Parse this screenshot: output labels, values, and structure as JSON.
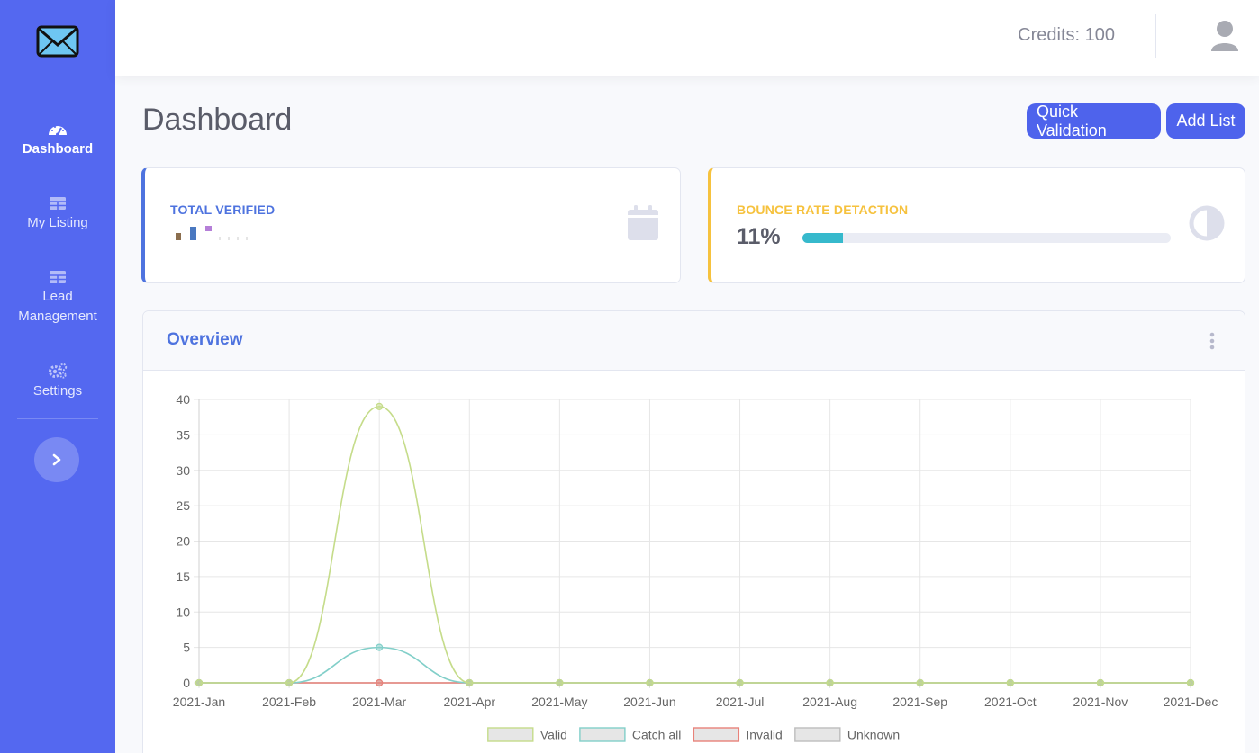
{
  "sidebar": {
    "brand_icon": "envelope-icon",
    "items": [
      {
        "label": "Dashboard",
        "icon": "tachometer-icon",
        "active": true
      },
      {
        "label": "My Listing",
        "icon": "table-icon"
      },
      {
        "label": "Lead Management",
        "icon": "table-icon"
      },
      {
        "label": "Settings",
        "icon": "cogs-icon"
      }
    ],
    "toggle_icon": "chevron-right-icon"
  },
  "topbar": {
    "credits": "Credits: 100",
    "avatar_icon": "user-icon"
  },
  "page": {
    "title": "Dashboard",
    "buttons": {
      "quick_validation": "Quick Validation",
      "add_list": "Add List"
    }
  },
  "stats": {
    "total_verified": {
      "label": "TOTAL VERIFIED",
      "icon": "calendar-icon"
    },
    "bounce_rate": {
      "label": "BOUNCE RATE DETACTION",
      "value": "11%",
      "progress_percent": 11,
      "icon": "half-circle-icon"
    }
  },
  "colors": {
    "primary": "#4e73df",
    "warning": "#f6c23e",
    "info": "#36b9cc",
    "sidebar": "#5468f0"
  },
  "overview": {
    "title": "Overview"
  },
  "chart_data": {
    "type": "line",
    "categories": [
      "2021-Jan",
      "2021-Feb",
      "2021-Mar",
      "2021-Apr",
      "2021-May",
      "2021-Jun",
      "2021-Jul",
      "2021-Aug",
      "2021-Sep",
      "2021-Oct",
      "2021-Nov",
      "2021-Dec"
    ],
    "ylim": [
      0,
      40
    ],
    "yticks": [
      0,
      5,
      10,
      15,
      20,
      25,
      30,
      35,
      40
    ],
    "grid": true,
    "legend": "bottom",
    "series": [
      {
        "name": "Valid",
        "color": "#c5dc8a",
        "values": [
          0,
          0,
          39,
          0,
          0,
          0,
          0,
          0,
          0,
          0,
          0,
          0
        ]
      },
      {
        "name": "Catch all",
        "color": "#82cfc9",
        "values": [
          0,
          0,
          5,
          0,
          0,
          0,
          0,
          0,
          0,
          0,
          0,
          0
        ]
      },
      {
        "name": "Invalid",
        "color": "#e8827a",
        "values": [
          0,
          0,
          0,
          0,
          0,
          0,
          0,
          0,
          0,
          0,
          0,
          0
        ]
      },
      {
        "name": "Unknown",
        "color": "#bdbdbd",
        "values": [
          0,
          0,
          0,
          0,
          0,
          0,
          0,
          0,
          0,
          0,
          0,
          0
        ]
      }
    ]
  }
}
